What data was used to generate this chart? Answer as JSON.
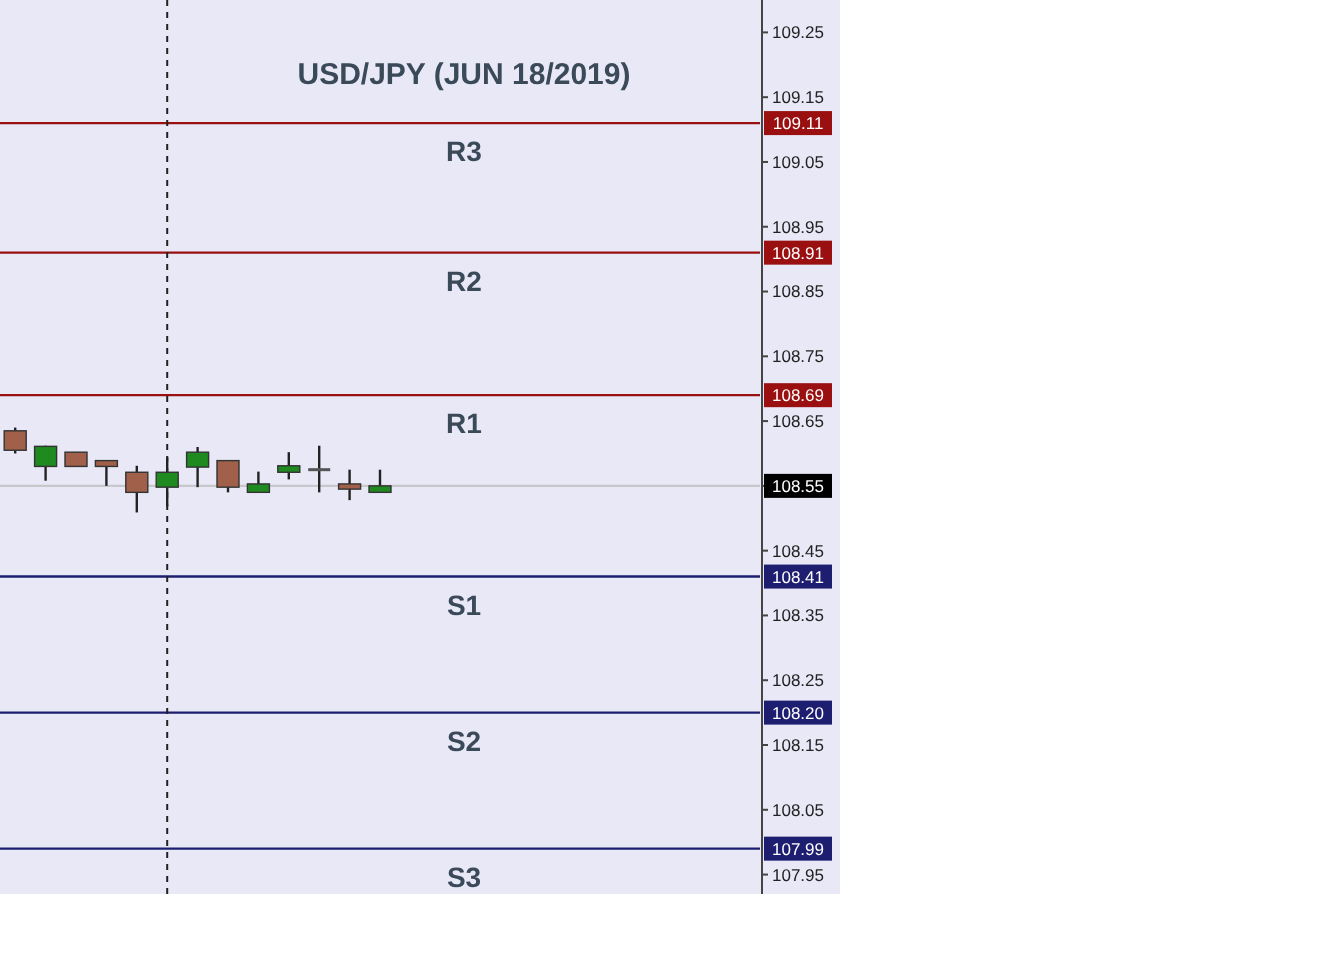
{
  "chart_data": {
    "type": "candlestick",
    "title": "USD/JPY (JUN 18/2019)",
    "categories": [
      null,
      null,
      null,
      null,
      null,
      null,
      null,
      null,
      null,
      null,
      null,
      null,
      null,
      null,
      null,
      null,
      null,
      null,
      null,
      null,
      null,
      null,
      null,
      null,
      null
    ],
    "ohlc": [
      [
        108.635,
        108.64,
        108.6,
        108.605
      ],
      [
        108.58,
        108.612,
        108.558,
        108.611
      ],
      [
        108.602,
        108.602,
        108.58,
        108.58
      ],
      [
        108.589,
        108.589,
        108.55,
        108.58
      ],
      [
        108.571,
        108.581,
        108.509,
        108.54
      ],
      [
        108.548,
        108.594,
        108.518,
        108.571
      ],
      [
        108.579,
        108.61,
        108.548,
        108.602
      ],
      [
        108.589,
        108.589,
        108.54,
        108.548
      ],
      [
        108.54,
        108.572,
        108.54,
        108.553
      ],
      [
        108.571,
        108.602,
        108.56,
        108.581
      ],
      [
        108.575,
        108.612,
        108.54,
        108.575
      ],
      [
        108.553,
        108.575,
        108.528,
        108.545
      ],
      [
        108.54,
        108.575,
        108.54,
        108.55
      ],
      null,
      null,
      null,
      null,
      null,
      null,
      null,
      null,
      null,
      null,
      null,
      null
    ],
    "colors": [
      "#a0604a",
      "#1f8a1f",
      "#a0604a",
      "#a0604a",
      "#a0604a",
      "#1f8a1f",
      "#1f8a1f",
      "#a0604a",
      "#1f8a1f",
      "#1f8a1f",
      "#555555",
      "#a0604a",
      "#1f8a1f",
      null,
      null,
      null,
      null,
      null,
      null,
      null,
      null,
      null,
      null,
      null,
      null
    ],
    "ylim": [
      107.92,
      109.3
    ],
    "yticks": [
      107.95,
      108.05,
      108.15,
      108.25,
      108.35,
      108.45,
      {
        "value": 108.55,
        "label": null
      },
      108.65,
      108.75,
      108.85,
      108.95,
      109.05,
      109.15,
      109.25
    ],
    "tick_labels": "y",
    "grid": false,
    "annotations": [
      {
        "text": "109.11",
        "y": 109.11
      },
      {
        "text": "108.91",
        "y": 108.91
      },
      {
        "text": "108.69",
        "y": 108.69
      },
      {
        "text": "108.55",
        "y": 108.55
      },
      {
        "text": "108.41",
        "y": 108.41
      },
      {
        "text": "108.20",
        "y": 108.2
      },
      {
        "text": "107.99",
        "y": 107.99
      }
    ],
    "ref_lines": [
      {
        "axis": "y",
        "value": 109.11,
        "label": "R3",
        "color": "#9a1010"
      },
      {
        "axis": "y",
        "value": 108.91,
        "label": "R2",
        "color": "#9a1010"
      },
      {
        "axis": "y",
        "value": 108.69,
        "label": "R1",
        "color": "#9a1010"
      },
      {
        "axis": "y",
        "value": 108.55,
        "label": null,
        "color": "#c8c8cc"
      },
      {
        "axis": "y",
        "value": 108.41,
        "label": "S1",
        "color": "#1e1e70"
      },
      {
        "axis": "y",
        "value": 108.2,
        "label": "S2",
        "color": "#1e1e70"
      },
      {
        "axis": "y",
        "value": 107.99,
        "label": "S3",
        "color": "#1e1e70"
      }
    ]
  }
}
